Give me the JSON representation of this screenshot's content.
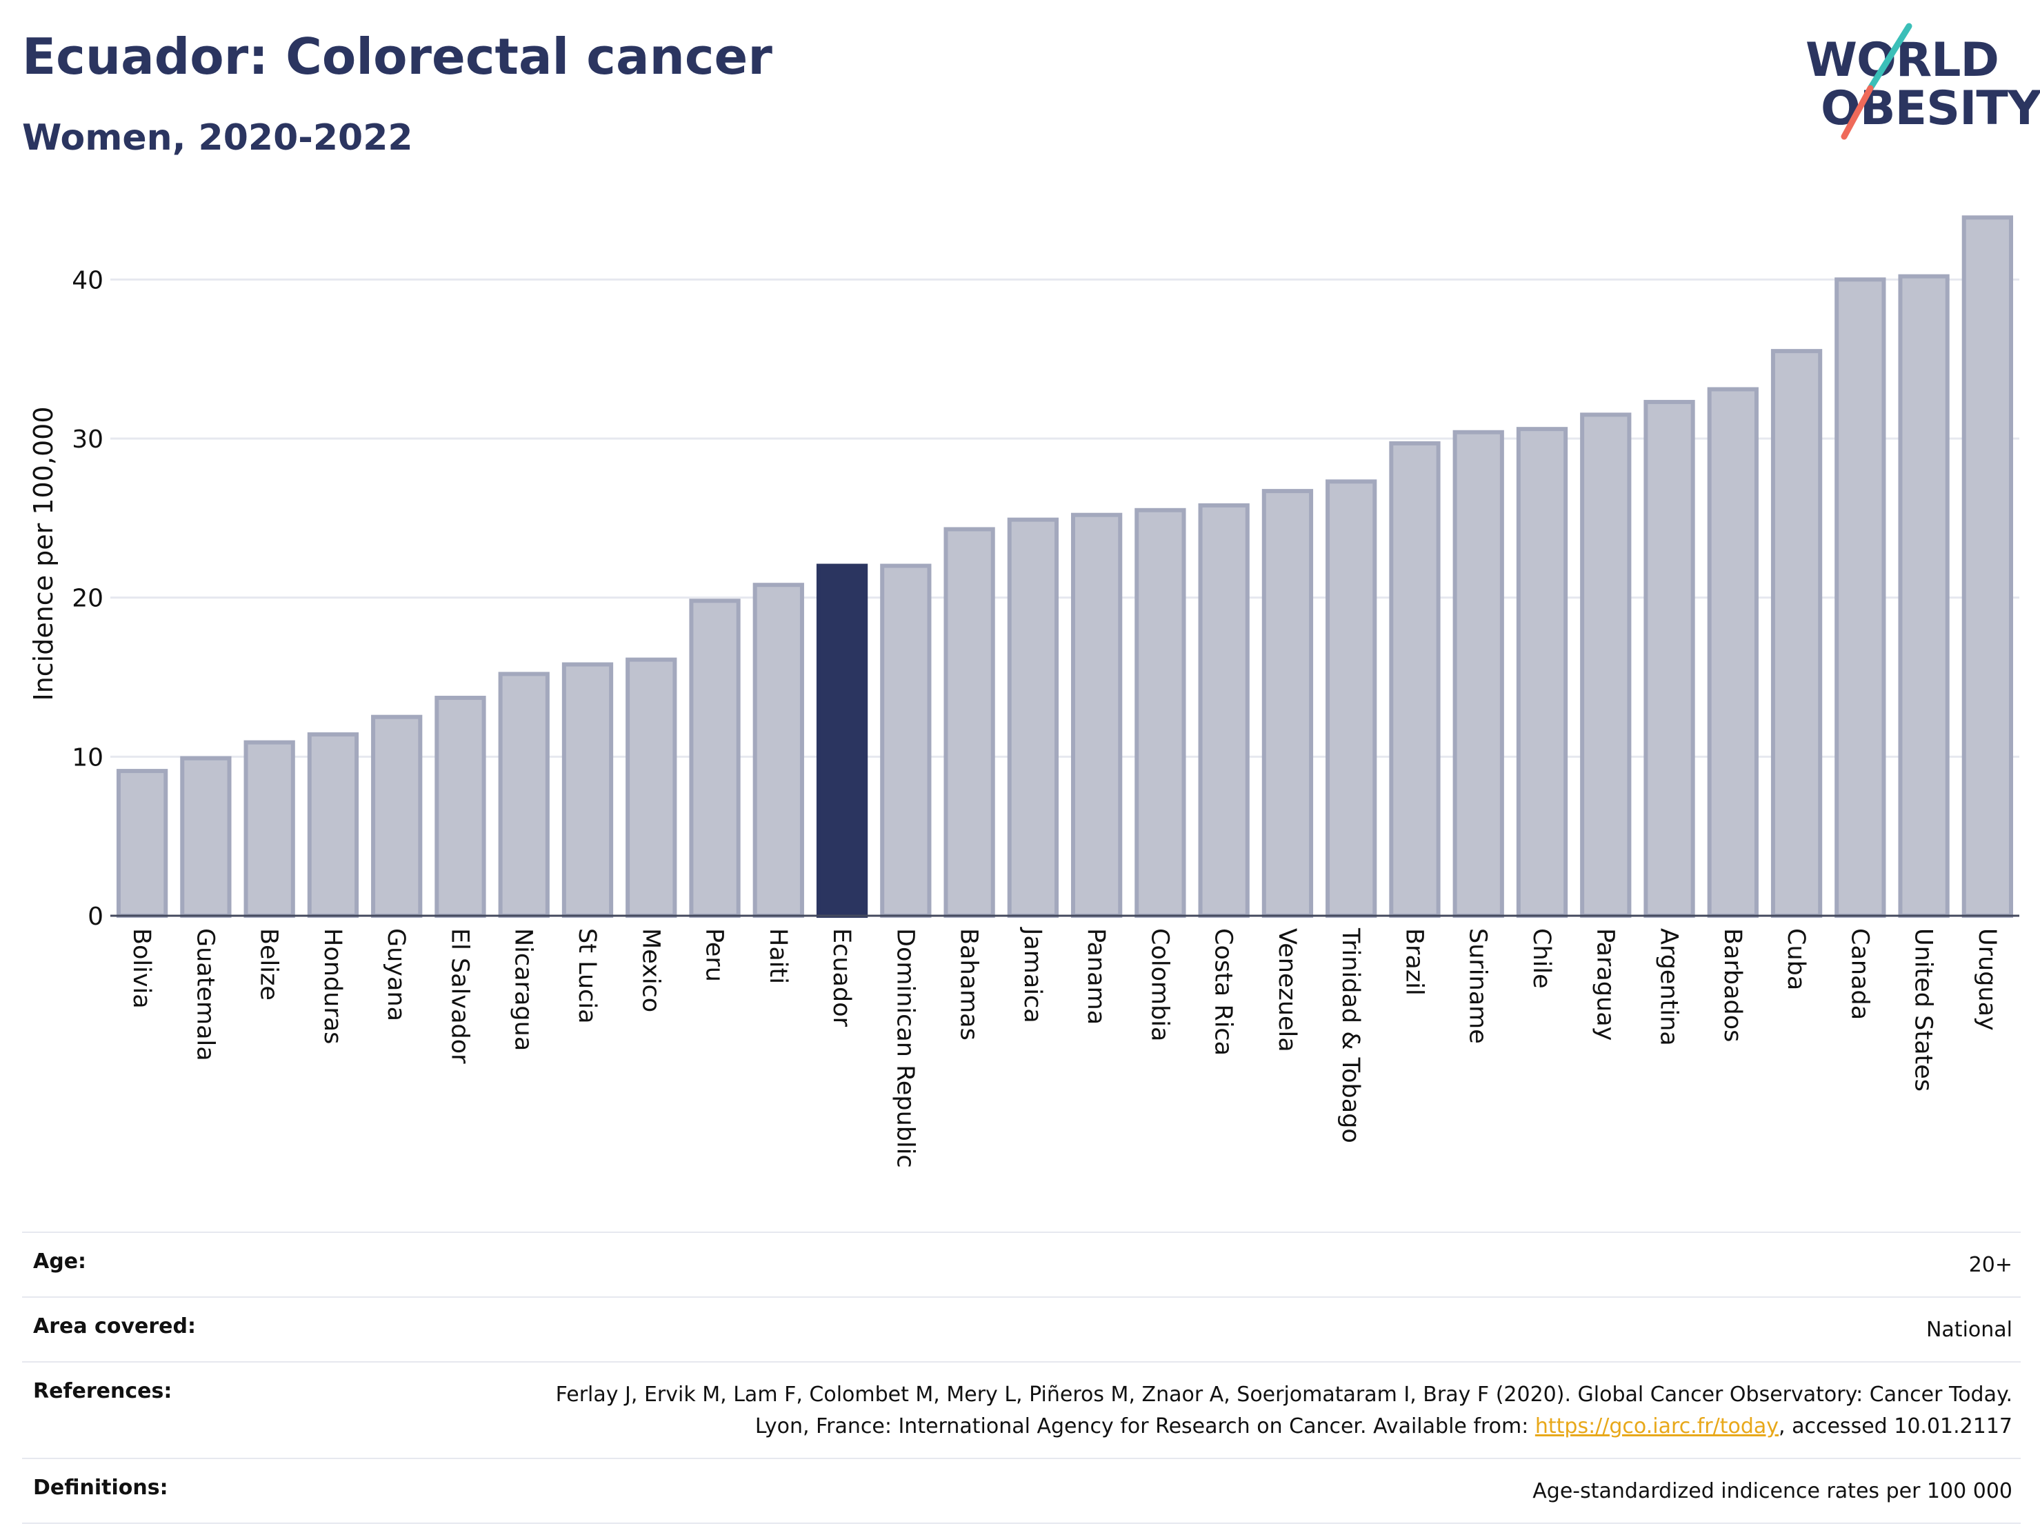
{
  "header": {
    "title": "Ecuador: Colorectal cancer",
    "subtitle": "Women, 2020-2022"
  },
  "logo": {
    "line1": "WORLD",
    "line2": "OBESITY"
  },
  "colors": {
    "highlight": "#2b3560",
    "bar": "#bfc2cf",
    "bar_border": "#a3a8bd",
    "title": "#2b3560",
    "logo_teal": "#3bbfb8",
    "logo_coral": "#ef6a5a",
    "link": "#e8a81a"
  },
  "chart_data": {
    "type": "bar",
    "title": "Ecuador: Colorectal cancer",
    "subtitle": "Women, 2020-2022",
    "ylabel": "Incidence per 100,000",
    "xlabel": "",
    "ylim": [
      0,
      45
    ],
    "yticks": [
      0,
      10,
      20,
      30,
      40
    ],
    "grid": true,
    "highlight": "Ecuador",
    "categories": [
      "Bolivia",
      "Guatemala",
      "Belize",
      "Honduras",
      "Guyana",
      "El Salvador",
      "Nicaragua",
      "St Lucia",
      "Mexico",
      "Peru",
      "Haiti",
      "Ecuador",
      "Dominican Republic",
      "Bahamas",
      "Jamaica",
      "Panama",
      "Colombia",
      "Costa Rica",
      "Venezuela",
      "Trinidad & Tobago",
      "Brazil",
      "Suriname",
      "Chile",
      "Paraguay",
      "Argentina",
      "Barbados",
      "Cuba",
      "Canada",
      "United States",
      "Uruguay"
    ],
    "values": [
      9.1,
      9.9,
      10.9,
      11.4,
      12.5,
      13.7,
      15.2,
      15.8,
      16.1,
      19.8,
      20.8,
      22.0,
      22.0,
      24.3,
      24.9,
      25.2,
      25.5,
      25.8,
      26.7,
      27.3,
      29.7,
      30.4,
      30.6,
      31.5,
      32.3,
      33.1,
      35.5,
      40.0,
      40.2,
      43.9
    ]
  },
  "meta": {
    "age_label": "Age:",
    "age_value": "20+",
    "area_label": "Area covered:",
    "area_value": "National",
    "references_label": "References:",
    "references_text_1": "Ferlay J, Ervik M, Lam F, Colombet M, Mery L, Piñeros M, Znaor A, Soerjomataram I, Bray F (2020). Global Cancer Observatory: Cancer Today. Lyon, France: International Agency for Research on Cancer. Available from: ",
    "references_link": "https://gco.iarc.fr/today",
    "references_text_2": ", accessed 10.01.2117",
    "definitions_label": "Definitions:",
    "definitions_value": "Age-standardized indicence rates per 100 000"
  }
}
